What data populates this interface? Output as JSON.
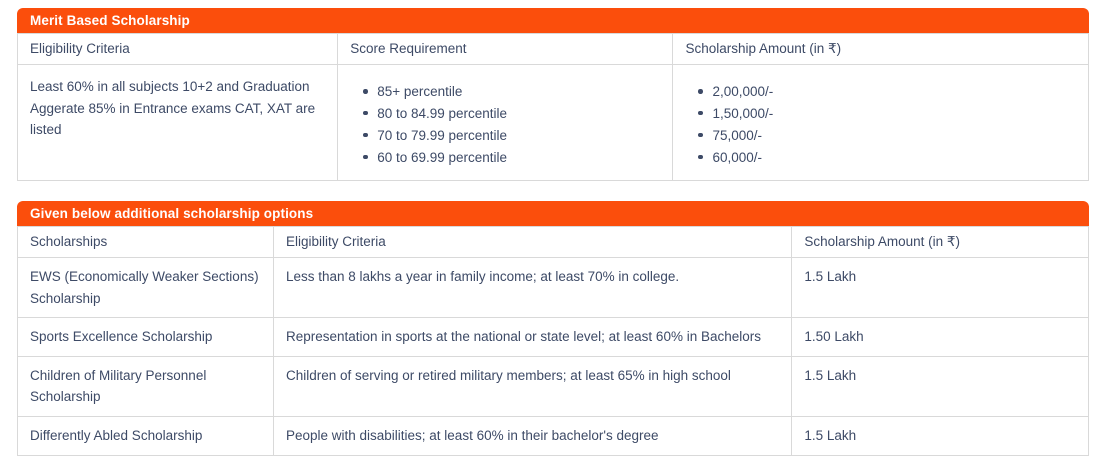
{
  "theme": {
    "accent_orange": "#fb4e0c",
    "text_color": "#3d4a66",
    "border_color": "#d9d9d9",
    "title_text_color": "#ffffff"
  },
  "merit_table": {
    "title": "Merit Based Scholarship",
    "columns": [
      "Eligibility Criteria",
      "Score Requirement",
      "Scholarship Amount (in ₹)"
    ],
    "row": {
      "eligibility": "Least 60% in all subjects 10+2 and Graduation Aggerate 85% in Entrance exams CAT, XAT are listed",
      "score_requirements": [
        "85+ percentile",
        "80 to 84.99 percentile",
        "70 to 79.99 percentile",
        "60 to 69.99 percentile"
      ],
      "amounts": [
        "2,00,000/-",
        "1,50,000/-",
        "75,000/-",
        "60,000/-"
      ]
    }
  },
  "additional_table": {
    "title": "Given below additional scholarship options",
    "columns": [
      "Scholarships",
      "Eligibility Criteria",
      "Scholarship Amount (in ₹)"
    ],
    "rows": [
      {
        "scholarship": "EWS (Economically Weaker Sections) Scholarship",
        "eligibility": "Less than 8 lakhs a year in family income; at least 70% in college.",
        "amount": "1.5 Lakh"
      },
      {
        "scholarship": "Sports Excellence Scholarship",
        "eligibility": "Representation in sports at the national or state level; at least 60% in Bachelors",
        "amount": "1.50 Lakh"
      },
      {
        "scholarship": "Children of Military Personnel Scholarship",
        "eligibility": "Children of serving or retired military members; at least 65% in high school",
        "amount": "1.5 Lakh"
      },
      {
        "scholarship": "Differently Abled Scholarship",
        "eligibility": "People with disabilities; at least 60% in their bachelor's degree",
        "amount": "1.5 Lakh"
      }
    ]
  }
}
